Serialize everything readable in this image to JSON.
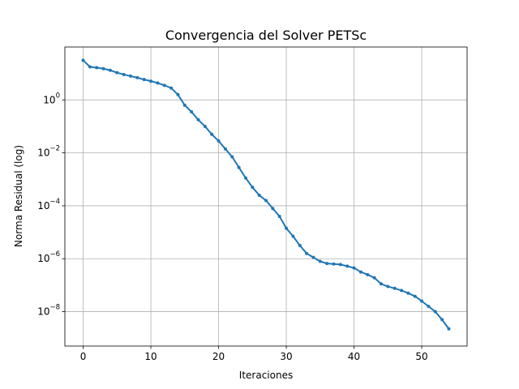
{
  "chart_data": {
    "type": "line",
    "title": "Convergencia del Solver PETSc",
    "xlabel": "Iteraciones",
    "ylabel": "Norma Residual (log)",
    "xlim": [
      -2.7,
      56.7
    ],
    "ylim_log10": [
      -9.3,
      2.0
    ],
    "yscale": "log",
    "grid": true,
    "x_ticks": [
      0,
      10,
      20,
      30,
      40,
      50
    ],
    "y_ticks_exponents": [
      0,
      -2,
      -4,
      -6,
      -8
    ],
    "series": [
      {
        "color": "#1f77b4",
        "marker": "circle",
        "x": [
          0,
          1,
          2,
          3,
          4,
          5,
          6,
          7,
          8,
          9,
          10,
          11,
          12,
          13,
          14,
          15,
          16,
          17,
          18,
          19,
          20,
          21,
          22,
          23,
          24,
          25,
          26,
          27,
          28,
          29,
          30,
          31,
          32,
          33,
          34,
          35,
          36,
          37,
          38,
          39,
          40,
          41,
          42,
          43,
          44,
          45,
          46,
          47,
          48,
          49,
          50,
          51,
          52,
          53,
          54
        ],
        "log10_y": [
          1.5,
          1.25,
          1.22,
          1.18,
          1.12,
          1.03,
          0.96,
          0.9,
          0.84,
          0.77,
          0.71,
          0.64,
          0.55,
          0.45,
          0.2,
          -0.2,
          -0.45,
          -0.75,
          -1.0,
          -1.3,
          -1.55,
          -1.85,
          -2.15,
          -2.55,
          -2.95,
          -3.3,
          -3.6,
          -3.8,
          -4.1,
          -4.4,
          -4.85,
          -5.15,
          -5.5,
          -5.8,
          -5.95,
          -6.1,
          -6.18,
          -6.2,
          -6.22,
          -6.28,
          -6.35,
          -6.5,
          -6.6,
          -6.72,
          -6.95,
          -7.05,
          -7.12,
          -7.2,
          -7.3,
          -7.42,
          -7.6,
          -7.8,
          -8.0,
          -8.3,
          -8.65
        ]
      }
    ]
  }
}
